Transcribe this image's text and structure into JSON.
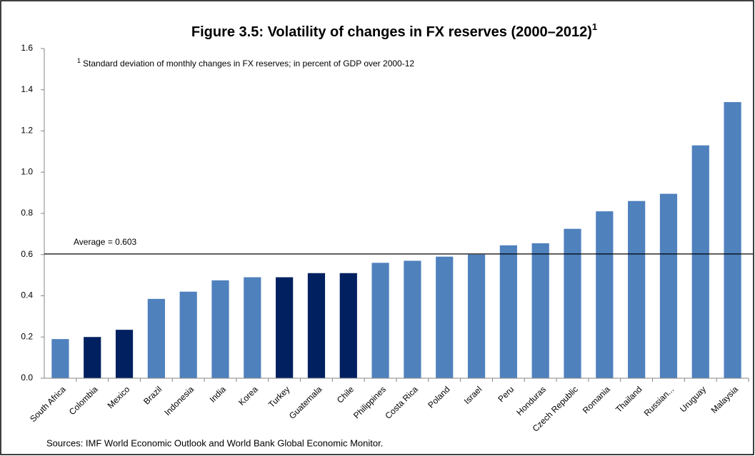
{
  "chart_data": {
    "type": "bar",
    "title": "Figure 3.5: Volatility of changes in FX reserves (2000–2012)",
    "title_marker": "1",
    "footnote": {
      "mark": "1",
      "text": "Standard deviation of monthly changes in FX reserves; in percent of GDP over 2000-12"
    },
    "source": "Sources: IMF World Economic Outlook and World Bank Global Economic Monitor.",
    "categories": [
      "South Africa",
      "Colombia",
      "Mexico",
      "Brazil",
      "Indonesia",
      "India",
      "Korea",
      "Turkey",
      "Guatemala",
      "Chile",
      "Philippines",
      "Costa Rica",
      "Poland",
      "Israel",
      "Peru",
      "Honduras",
      "Czech Republic",
      "Romania",
      "Thailand",
      "Russian...",
      "Uruguay",
      "Malaysia"
    ],
    "values": [
      0.19,
      0.2,
      0.235,
      0.385,
      0.42,
      0.475,
      0.49,
      0.49,
      0.51,
      0.51,
      0.56,
      0.57,
      0.59,
      0.6,
      0.645,
      0.655,
      0.725,
      0.81,
      0.86,
      0.895,
      1.13,
      1.34
    ],
    "colors": [
      "#4f81bd",
      "#002060",
      "#002060",
      "#4f81bd",
      "#4f81bd",
      "#4f81bd",
      "#4f81bd",
      "#002060",
      "#002060",
      "#002060",
      "#4f81bd",
      "#4f81bd",
      "#4f81bd",
      "#4f81bd",
      "#4f81bd",
      "#4f81bd",
      "#4f81bd",
      "#4f81bd",
      "#4f81bd",
      "#4f81bd",
      "#4f81bd",
      "#4f81bd"
    ],
    "reference_line": {
      "value": 0.603,
      "label": "Average = 0.603"
    },
    "ylim": [
      0,
      1.6
    ],
    "yticks": [
      {
        "value": 0,
        "label": "0.0"
      },
      0.2,
      0.4,
      0.6,
      0.8,
      {
        "value": 1,
        "label": "1.0"
      },
      1.2,
      1.4,
      1.6
    ],
    "grid": false
  }
}
